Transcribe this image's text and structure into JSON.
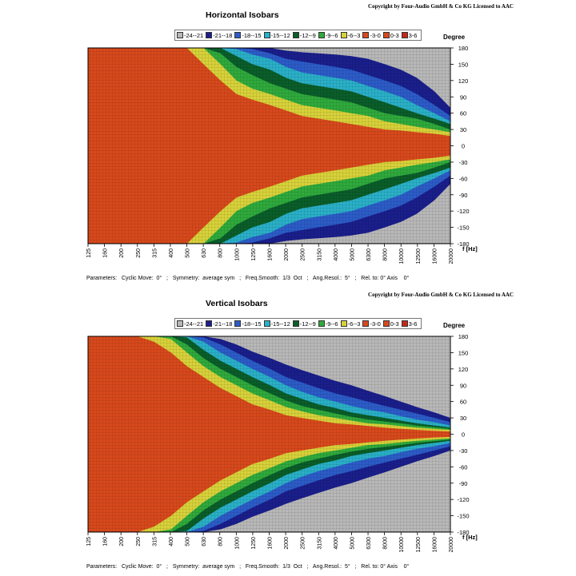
{
  "charts": [
    {
      "copyright": "Copyright by Four-Audio GmbH & Co KG   Licensed to AAC",
      "title": "Horizontal Isobars",
      "degree_label": "Degree",
      "hz_label": "f [Hz]",
      "parameters": "Parameters:   Cyclic Move:  0°   ;   Symmetry:  average sym   ;   Freq.Smooth:  1/3  Oct   ;   Ang.Resol.:  5°   ;   Rel. to: 0° Axis    0°"
    },
    {
      "copyright": "Copyright by Four-Audio GmbH & Co KG   Licensed to AAC",
      "title": "Vertical Isobars",
      "degree_label": "Degree",
      "hz_label": "f [Hz]",
      "parameters": "Parameters:   Cyclic Move:  0°   ;   Symmetry:  average sym   ;   Freq.Smooth:  1/3  Oct   ;   Ang.Resol.:  5°   ;   Rel. to: 0° Axis    0°"
    }
  ],
  "legend": [
    {
      "label": "-24--21",
      "color": "#b8b8b8"
    },
    {
      "label": "-21--18",
      "color": "#1a1f8c"
    },
    {
      "label": "-18--15",
      "color": "#2c5cc8"
    },
    {
      "label": "-15--12",
      "color": "#2ab0c8"
    },
    {
      "label": "-12--9",
      "color": "#0a5e2a"
    },
    {
      "label": "-9--6",
      "color": "#2faa3c"
    },
    {
      "label": "-6--3",
      "color": "#d8d23a"
    },
    {
      "label": "-3-0",
      "color": "#d8491c"
    },
    {
      "label": "0-3",
      "color": "#d8491c"
    },
    {
      "label": "3-6",
      "color": "#c2281a"
    }
  ],
  "chart_data": [
    {
      "type": "heatmap",
      "title": "Horizontal Isobars",
      "xlabel": "f [Hz]",
      "ylabel": "Degree",
      "x_ticks": [
        "125",
        "160",
        "200",
        "250",
        "315",
        "400",
        "500",
        "630",
        "800",
        "1000",
        "1250",
        "1600",
        "2000",
        "2500",
        "3150",
        "4000",
        "5000",
        "6300",
        "8000",
        "10000",
        "12500",
        "16000",
        "20000"
      ],
      "y_ticks": [
        180,
        150,
        120,
        90,
        60,
        30,
        0,
        -30,
        -60,
        -90,
        -120,
        -150,
        -180
      ],
      "ylim": [
        -180,
        180
      ],
      "x_scale": "log",
      "contour_half_angle_deg": {
        "frequencies_hz": [
          125,
          315,
          500,
          630,
          800,
          1000,
          1250,
          1600,
          2000,
          2500,
          3150,
          4000,
          5000,
          6300,
          8000,
          10000,
          12500,
          16000,
          20000
        ],
        "-3": [
          180,
          180,
          180,
          150,
          120,
          95,
          85,
          75,
          65,
          55,
          50,
          45,
          40,
          35,
          30,
          28,
          25,
          22,
          18
        ],
        "-6": [
          180,
          180,
          180,
          180,
          150,
          120,
          105,
          95,
          85,
          75,
          70,
          65,
          60,
          55,
          45,
          40,
          35,
          30,
          25
        ],
        "-9": [
          180,
          180,
          180,
          180,
          170,
          145,
          130,
          115,
          105,
          95,
          90,
          85,
          80,
          70,
          60,
          55,
          50,
          40,
          30
        ],
        "-12": [
          180,
          180,
          180,
          180,
          180,
          165,
          150,
          140,
          125,
          115,
          110,
          105,
          100,
          90,
          80,
          70,
          60,
          50,
          40
        ],
        "-15": [
          180,
          180,
          180,
          180,
          180,
          178,
          168,
          160,
          145,
          135,
          130,
          125,
          120,
          110,
          100,
          90,
          75,
          60,
          45
        ],
        "-18": [
          180,
          180,
          180,
          180,
          180,
          180,
          178,
          170,
          160,
          155,
          150,
          145,
          140,
          130,
          120,
          110,
          95,
          75,
          55
        ],
        "-21": [
          180,
          180,
          180,
          180,
          180,
          180,
          180,
          180,
          175,
          172,
          170,
          168,
          165,
          160,
          150,
          140,
          125,
          100,
          70
        ]
      }
    },
    {
      "type": "heatmap",
      "title": "Vertical Isobars",
      "xlabel": "f [Hz]",
      "ylabel": "Degree",
      "x_ticks": [
        "125",
        "160",
        "200",
        "250",
        "315",
        "400",
        "500",
        "630",
        "800",
        "1000",
        "1250",
        "1600",
        "2000",
        "2500",
        "3150",
        "4000",
        "5000",
        "6300",
        "8000",
        "10000",
        "12500",
        "16000",
        "20000"
      ],
      "y_ticks": [
        180,
        150,
        120,
        90,
        60,
        30,
        0,
        -30,
        -60,
        -90,
        -120,
        -150,
        -180
      ],
      "ylim": [
        -180,
        180
      ],
      "x_scale": "log",
      "contour_half_angle_deg": {
        "frequencies_hz": [
          125,
          250,
          315,
          400,
          500,
          630,
          800,
          1000,
          1250,
          1600,
          2000,
          2500,
          3150,
          4000,
          5000,
          6300,
          8000,
          10000,
          12500,
          16000,
          20000
        ],
        "-3": [
          180,
          180,
          170,
          150,
          125,
          105,
          85,
          70,
          55,
          45,
          35,
          30,
          25,
          20,
          18,
          15,
          12,
          10,
          8,
          6,
          5
        ],
        "-6": [
          180,
          180,
          180,
          175,
          150,
          125,
          105,
          90,
          75,
          62,
          50,
          42,
          35,
          30,
          25,
          20,
          18,
          15,
          12,
          10,
          8
        ],
        "-9": [
          180,
          180,
          180,
          180,
          165,
          140,
          120,
          105,
          90,
          75,
          62,
          52,
          45,
          38,
          32,
          27,
          23,
          20,
          16,
          13,
          10
        ],
        "-12": [
          180,
          180,
          180,
          180,
          178,
          155,
          135,
          120,
          105,
          90,
          75,
          65,
          55,
          48,
          40,
          35,
          30,
          25,
          20,
          16,
          12
        ],
        "-15": [
          180,
          180,
          180,
          180,
          180,
          170,
          150,
          135,
          120,
          105,
          90,
          78,
          68,
          60,
          52,
          45,
          40,
          33,
          27,
          22,
          16
        ],
        "-18": [
          180,
          180,
          180,
          180,
          180,
          178,
          165,
          150,
          135,
          120,
          105,
          95,
          85,
          75,
          68,
          60,
          52,
          45,
          38,
          30,
          22
        ],
        "-21": [
          180,
          180,
          180,
          180,
          180,
          180,
          175,
          165,
          152,
          140,
          128,
          118,
          108,
          98,
          90,
          80,
          70,
          60,
          50,
          40,
          30
        ]
      }
    }
  ]
}
